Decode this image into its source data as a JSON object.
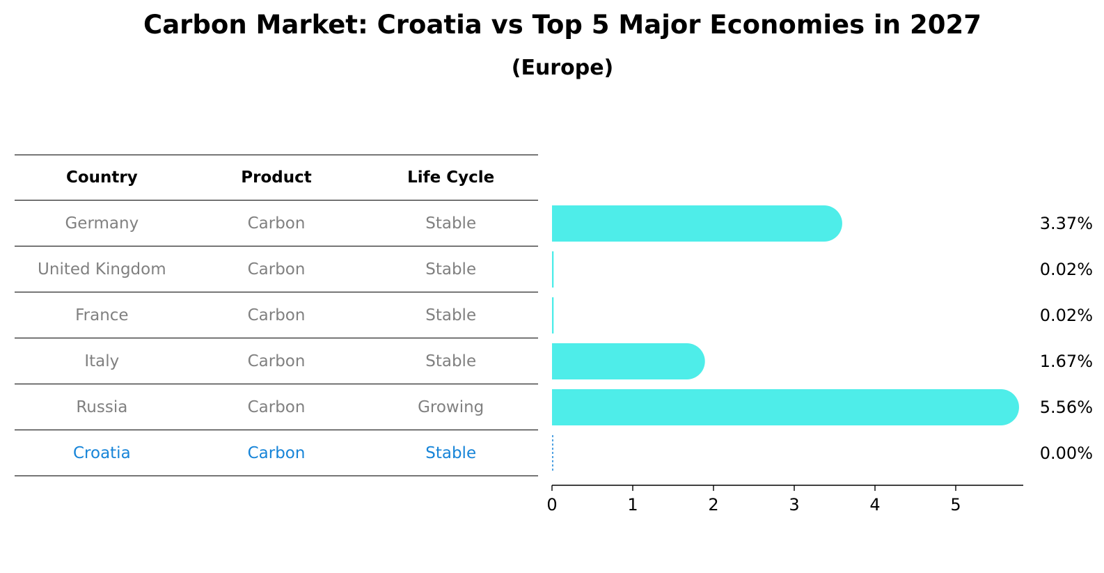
{
  "header": {
    "title": "Carbon Market: Croatia vs Top 5 Major Economies in 2027",
    "subtitle": "(Europe)"
  },
  "table": {
    "columns": [
      "Country",
      "Product",
      "Life Cycle"
    ],
    "rows": [
      {
        "country": "Germany",
        "product": "Carbon",
        "life_cycle": "Stable",
        "highlight": false
      },
      {
        "country": "United Kingdom",
        "product": "Carbon",
        "life_cycle": "Stable",
        "highlight": false
      },
      {
        "country": "France",
        "product": "Carbon",
        "life_cycle": "Stable",
        "highlight": false
      },
      {
        "country": "Italy",
        "product": "Carbon",
        "life_cycle": "Stable",
        "highlight": false
      },
      {
        "country": "Russia",
        "product": "Carbon",
        "life_cycle": "Growing",
        "highlight": false
      },
      {
        "country": "Croatia",
        "product": "Carbon",
        "life_cycle": "Stable",
        "highlight": true
      }
    ]
  },
  "colors": {
    "bar": "#4eede9",
    "highlight": "#1684d8",
    "muted_text": "#808080"
  },
  "chart_data": {
    "type": "bar",
    "orientation": "horizontal",
    "title": "Carbon Market: Croatia vs Top 5 Major Economies in 2027",
    "subtitle": "(Europe)",
    "categories": [
      "Germany",
      "United Kingdom",
      "France",
      "Italy",
      "Russia",
      "Croatia"
    ],
    "values": [
      3.37,
      0.02,
      0.02,
      1.67,
      5.56,
      0.0
    ],
    "value_labels": [
      "3.37%",
      "0.02%",
      "0.02%",
      "1.67%",
      "5.56%",
      "0.00%"
    ],
    "xticks": [
      0,
      1,
      2,
      3,
      4,
      5
    ],
    "xlim": [
      0,
      5.85
    ],
    "xlabel": "",
    "ylabel": "",
    "grid": false,
    "legend": "none"
  }
}
